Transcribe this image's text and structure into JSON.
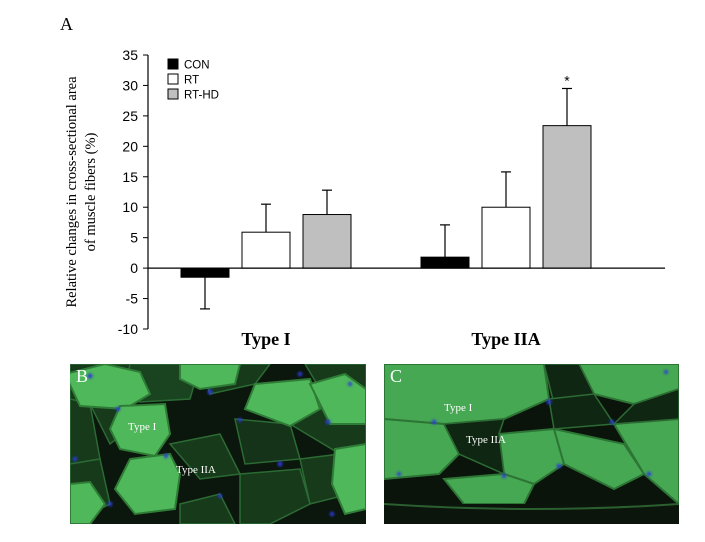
{
  "panels": {
    "a": "A",
    "b": "B",
    "c": "C"
  },
  "chart_data": {
    "type": "bar",
    "categories": [
      "Type I",
      "Type IIA"
    ],
    "series": [
      {
        "name": "CON",
        "color": "#000000",
        "values": [
          -1.5,
          1.8
        ],
        "errors": [
          5.2,
          5.3
        ]
      },
      {
        "name": "RT",
        "color": "#ffffff",
        "values": [
          5.9,
          10.0
        ],
        "errors": [
          4.6,
          5.8
        ]
      },
      {
        "name": "RT-HD",
        "color": "#bfbfbf",
        "values": [
          8.8,
          23.4
        ],
        "errors": [
          4.0,
          6.1
        ]
      }
    ],
    "significance": [
      {
        "category": "Type IIA",
        "series": "RT-HD",
        "label": "*"
      }
    ],
    "ylabel_line1": "Relative changes in cross-sectional area",
    "ylabel_line2": "of muscle fibers (%)",
    "ylim": [
      -10,
      35
    ],
    "yticks": [
      -10,
      -5,
      0,
      5,
      10,
      15,
      20,
      25,
      30,
      35
    ],
    "ytick_labels": [
      "-10",
      "-5",
      "0",
      "5",
      "10",
      "15",
      "20",
      "25",
      "30",
      "35"
    ],
    "legend_position": "top-left"
  },
  "micrographs": {
    "b_label_type1": "Type I",
    "b_label_type2a": "Type IIA",
    "c_label_type1": "Type I",
    "c_label_type2a": "Type IIA"
  }
}
